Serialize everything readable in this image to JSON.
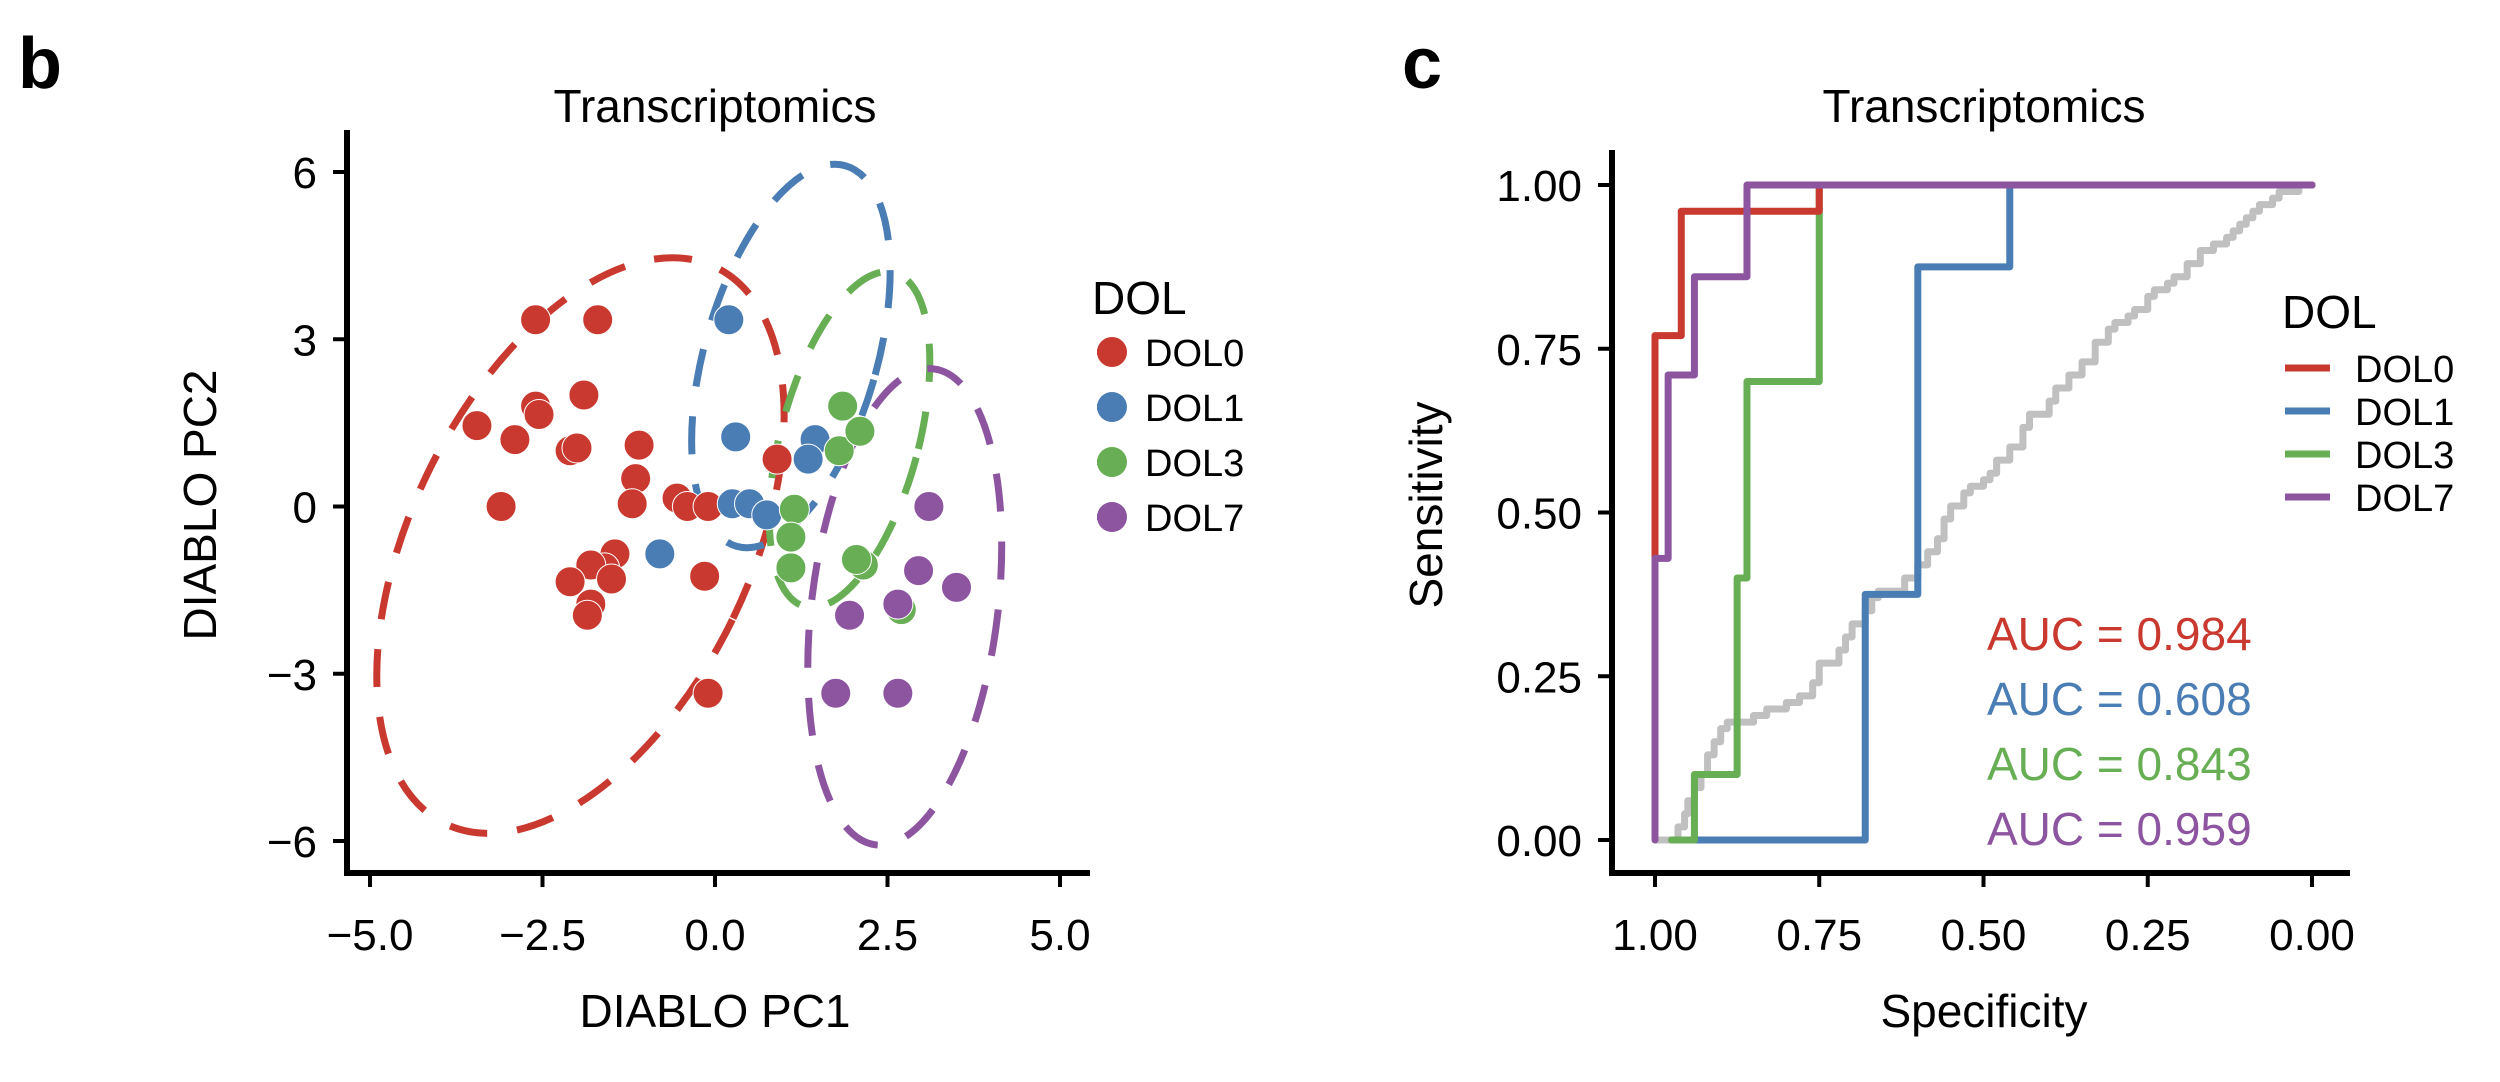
{
  "panels": {
    "b": {
      "letter": "b"
    },
    "c": {
      "letter": "c"
    }
  },
  "colors": {
    "DOL0": "#C9392F",
    "DOL1": "#4A7DB4",
    "DOL3": "#67AE54",
    "DOL7": "#8D55A0",
    "reference": "#C0C0C0"
  },
  "chart_data": [
    {
      "type": "scatter",
      "title": "Transcriptomics",
      "xlabel": "DIABLO PC1",
      "ylabel": "DIABLO PC2",
      "xlim": [
        -5.4,
        5.4
      ],
      "ylim": [
        -6.7,
        6.9
      ],
      "xticks": [
        -5.0,
        -2.5,
        0.0,
        2.5,
        5.0
      ],
      "xtick_labels": [
        "−5.0",
        "−2.5",
        "0.0",
        "2.5",
        "5.0"
      ],
      "yticks": [
        -6,
        -3,
        0,
        3,
        6
      ],
      "ytick_labels": [
        "−6",
        "−3",
        "0",
        "3",
        "6"
      ],
      "grid": false,
      "legend": {
        "title": "DOL",
        "position": "right",
        "entries": [
          "DOL0",
          "DOL1",
          "DOL3",
          "DOL7"
        ]
      },
      "series": [
        {
          "name": "DOL0",
          "points": [
            [
              -2.6,
              3.35
            ],
            [
              -1.7,
              3.35
            ],
            [
              -2.6,
              1.8
            ],
            [
              -2.55,
              1.65
            ],
            [
              -1.9,
              2.0
            ],
            [
              -3.45,
              1.45
            ],
            [
              -2.9,
              1.2
            ],
            [
              -2.1,
              1.0
            ],
            [
              -2.0,
              1.05
            ],
            [
              -1.1,
              1.1
            ],
            [
              -1.15,
              0.5
            ],
            [
              -1.2,
              0.05
            ],
            [
              -3.1,
              0.0
            ],
            [
              -0.55,
              0.15
            ],
            [
              -0.4,
              0.0
            ],
            [
              -0.1,
              0.0
            ],
            [
              0.9,
              0.85
            ],
            [
              -1.45,
              -0.85
            ],
            [
              -1.6,
              -1.1
            ],
            [
              -1.8,
              -1.05
            ],
            [
              -1.5,
              -1.3
            ],
            [
              -2.1,
              -1.35
            ],
            [
              -1.8,
              -1.75
            ],
            [
              -1.85,
              -1.95
            ],
            [
              -0.15,
              -1.25
            ],
            [
              -0.1,
              -3.35
            ]
          ]
        },
        {
          "name": "DOL1",
          "points": [
            [
              0.2,
              3.35
            ],
            [
              0.3,
              1.25
            ],
            [
              1.45,
              1.2
            ],
            [
              1.35,
              0.85
            ],
            [
              0.25,
              0.05
            ],
            [
              0.5,
              0.05
            ],
            [
              0.75,
              -0.15
            ],
            [
              -0.8,
              -0.85
            ]
          ]
        },
        {
          "name": "DOL3",
          "points": [
            [
              1.85,
              1.8
            ],
            [
              1.8,
              1.0
            ],
            [
              2.1,
              1.35
            ],
            [
              1.15,
              -0.05
            ],
            [
              1.1,
              -0.55
            ],
            [
              1.1,
              -1.1
            ],
            [
              2.15,
              -1.05
            ],
            [
              2.05,
              -0.95
            ],
            [
              2.7,
              -1.85
            ]
          ]
        },
        {
          "name": "DOL7",
          "points": [
            [
              3.1,
              0.0
            ],
            [
              2.95,
              -1.15
            ],
            [
              3.5,
              -1.45
            ],
            [
              2.65,
              -1.75
            ],
            [
              1.95,
              -1.95
            ],
            [
              1.75,
              -3.35
            ],
            [
              2.65,
              -3.35
            ]
          ]
        }
      ],
      "ellipses": [
        {
          "name": "DOL0",
          "center": [
            -1.95,
            -0.7
          ],
          "semi_axes": [
            2.45,
            5.55
          ],
          "angle_deg": 26
        },
        {
          "name": "DOL1",
          "center": [
            1.1,
            2.7
          ],
          "semi_axes": [
            1.25,
            3.55
          ],
          "angle_deg": 16
        },
        {
          "name": "DOL3",
          "center": [
            1.95,
            1.2
          ],
          "semi_axes": [
            1.0,
            3.1
          ],
          "angle_deg": 15
        },
        {
          "name": "DOL7",
          "center": [
            2.75,
            -1.8
          ],
          "semi_axes": [
            1.35,
            4.3
          ],
          "angle_deg": 7
        }
      ]
    },
    {
      "type": "line",
      "title": "Transcriptomics",
      "xlabel": "Specificity",
      "ylabel": "Sensitivity",
      "xlim": [
        1.03,
        -0.03
      ],
      "ylim": [
        -0.05,
        1.05
      ],
      "x_reversed": true,
      "xticks": [
        1.0,
        0.75,
        0.5,
        0.25,
        0.0
      ],
      "xtick_labels": [
        "1.00",
        "0.75",
        "0.50",
        "0.25",
        "0.00"
      ],
      "yticks": [
        0.0,
        0.25,
        0.5,
        0.75,
        1.0
      ],
      "ytick_labels": [
        "0.00",
        "0.25",
        "0.50",
        "0.75",
        "1.00"
      ],
      "grid": false,
      "legend": {
        "title": "DOL",
        "position": "right",
        "entries": [
          "DOL0",
          "DOL1",
          "DOL3",
          "DOL7"
        ]
      },
      "series": [
        {
          "name": "DOL0",
          "auc_label": "AUC = 0.984",
          "auc": 0.984,
          "specificity": [
            1.0,
            1.0,
            0.985,
            0.985,
            0.96,
            0.96,
            0.75,
            0.75,
            0.0
          ],
          "sensitivity": [
            0.43,
            0.77,
            0.77,
            0.77,
            0.77,
            0.96,
            0.96,
            1.0,
            1.0
          ]
        },
        {
          "name": "DOL1",
          "auc_label": "AUC = 0.608",
          "auc": 0.608,
          "specificity": [
            0.94,
            0.68,
            0.68,
            0.6,
            0.6,
            0.46,
            0.46,
            0.0
          ],
          "sensitivity": [
            0.0,
            0.0,
            0.375,
            0.375,
            0.875,
            0.875,
            1.0,
            1.0
          ]
        },
        {
          "name": "DOL3",
          "auc_label": "AUC = 0.843",
          "auc": 0.843,
          "specificity": [
            0.975,
            0.94,
            0.94,
            0.915,
            0.915,
            0.875,
            0.875,
            0.86,
            0.86,
            0.75,
            0.75,
            0.0
          ],
          "sensitivity": [
            0.0,
            0.0,
            0.1,
            0.1,
            0.1,
            0.1,
            0.4,
            0.4,
            0.7,
            0.7,
            1.0,
            1.0
          ]
        },
        {
          "name": "DOL7",
          "auc_label": "AUC = 0.959",
          "auc": 0.959,
          "specificity": [
            1.0,
            1.0,
            0.98,
            0.98,
            0.94,
            0.94,
            0.86,
            0.86,
            0.0
          ],
          "sensitivity": [
            0.0,
            0.43,
            0.43,
            0.71,
            0.71,
            0.86,
            0.86,
            1.0,
            1.0
          ]
        },
        {
          "name": "reference",
          "auc_label": "",
          "auc": null,
          "specificity": [
            1.0,
            0.975,
            0.965,
            0.955,
            0.95,
            0.94,
            0.93,
            0.92,
            0.91,
            0.9,
            0.89,
            0.87,
            0.85,
            0.83,
            0.8,
            0.78,
            0.76,
            0.75,
            0.72,
            0.71,
            0.7,
            0.68,
            0.67,
            0.66,
            0.64,
            0.63,
            0.62,
            0.6,
            0.585,
            0.57,
            0.56,
            0.55,
            0.53,
            0.52,
            0.5,
            0.49,
            0.48,
            0.46,
            0.44,
            0.43,
            0.42,
            0.4,
            0.39,
            0.37,
            0.35,
            0.33,
            0.31,
            0.3,
            0.28,
            0.27,
            0.25,
            0.24,
            0.22,
            0.21,
            0.19,
            0.17,
            0.15,
            0.13,
            0.12,
            0.11,
            0.1,
            0.09,
            0.08,
            0.07,
            0.06,
            0.05,
            0.04,
            0.03,
            0.02,
            0.0
          ],
          "sensitivity": [
            0.0,
            0.0,
            0.02,
            0.04,
            0.06,
            0.08,
            0.1,
            0.13,
            0.15,
            0.17,
            0.18,
            0.18,
            0.19,
            0.2,
            0.21,
            0.22,
            0.24,
            0.27,
            0.29,
            0.31,
            0.33,
            0.35,
            0.37,
            0.38,
            0.38,
            0.38,
            0.4,
            0.42,
            0.44,
            0.46,
            0.49,
            0.51,
            0.53,
            0.54,
            0.55,
            0.56,
            0.58,
            0.6,
            0.63,
            0.65,
            0.65,
            0.67,
            0.69,
            0.71,
            0.73,
            0.76,
            0.78,
            0.79,
            0.8,
            0.81,
            0.83,
            0.84,
            0.85,
            0.86,
            0.88,
            0.9,
            0.91,
            0.92,
            0.93,
            0.94,
            0.95,
            0.96,
            0.97,
            0.97,
            0.98,
            0.99,
            0.99,
            0.99,
            1.0,
            1.0
          ]
        }
      ]
    }
  ]
}
